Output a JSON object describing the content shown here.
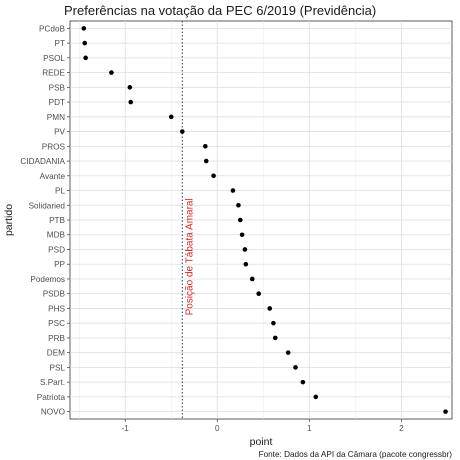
{
  "chart_data": {
    "type": "scatter",
    "title": "Preferências na votação da PEC 6/2019 (Previdência)",
    "xlabel": "point",
    "ylabel": "partido",
    "caption": "Fonte: Dados da API da Câmara (pacote congressbr)",
    "xlim": [
      -1.6,
      2.55
    ],
    "xticks": [
      -1,
      0,
      1,
      2
    ],
    "grid": true,
    "categories": [
      "PCdoB",
      "PT",
      "PSOL",
      "REDE",
      "PSB",
      "PDT",
      "PMN",
      "PV",
      "PROS",
      "CIDADANIA",
      "Avante",
      "PL",
      "Solidaried",
      "PTB",
      "MDB",
      "PSD",
      "PP",
      "Podemos",
      "PSDB",
      "PHS",
      "PSC",
      "PRB",
      "DEM",
      "PSL",
      "S.Part.",
      "Patriota",
      "NOVO"
    ],
    "values": [
      -1.45,
      -1.44,
      -1.43,
      -1.15,
      -0.95,
      -0.94,
      -0.5,
      -0.38,
      -0.13,
      -0.12,
      -0.04,
      0.17,
      0.23,
      0.25,
      0.27,
      0.3,
      0.31,
      0.38,
      0.45,
      0.57,
      0.61,
      0.63,
      0.77,
      0.85,
      0.93,
      1.07,
      2.48
    ],
    "reference_line": {
      "x": -0.38,
      "label": "Posição de Tábata Amaral",
      "color": "#cc2a2a"
    },
    "point_color": "#000000"
  }
}
